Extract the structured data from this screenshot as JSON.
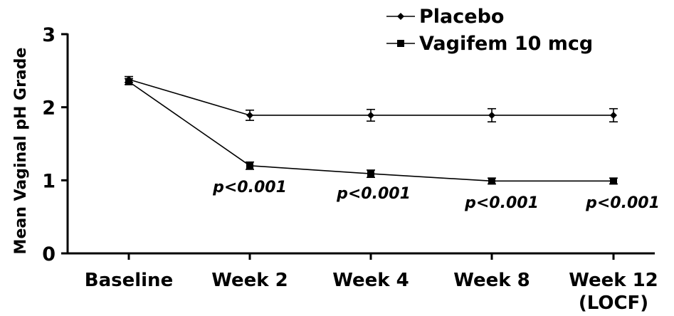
{
  "chart_data": {
    "type": "line",
    "ylabel": "Mean Vaginal pH Grade",
    "xlabel": "",
    "title": "",
    "categories": [
      "Baseline",
      "Week 2",
      "Week 4",
      "Week 8",
      "Week 12"
    ],
    "category_sublabels": [
      "",
      "",
      "",
      "",
      "(LOCF)"
    ],
    "ylim": [
      0,
      3
    ],
    "yticks": [
      0,
      1,
      2,
      3
    ],
    "grid": false,
    "legend_position": "top-right",
    "series": [
      {
        "name": "Placebo",
        "marker": "diamond",
        "values": [
          2.38,
          1.89,
          1.89,
          1.89,
          1.89
        ],
        "errors": [
          0.04,
          0.07,
          0.08,
          0.09,
          0.09
        ]
      },
      {
        "name": "Vagifem 10 mcg",
        "marker": "square",
        "values": [
          2.35,
          1.2,
          1.09,
          0.99,
          0.99
        ],
        "errors": [
          0.04,
          0.05,
          0.05,
          0.04,
          0.04
        ]
      }
    ],
    "annotations": [
      {
        "category": "Week 2",
        "text": "p<0.001"
      },
      {
        "category": "Week 4",
        "text": "p<0.001"
      },
      {
        "category": "Week 8",
        "text": "p<0.001"
      },
      {
        "category": "Week 12",
        "text": "p<0.001"
      }
    ]
  }
}
